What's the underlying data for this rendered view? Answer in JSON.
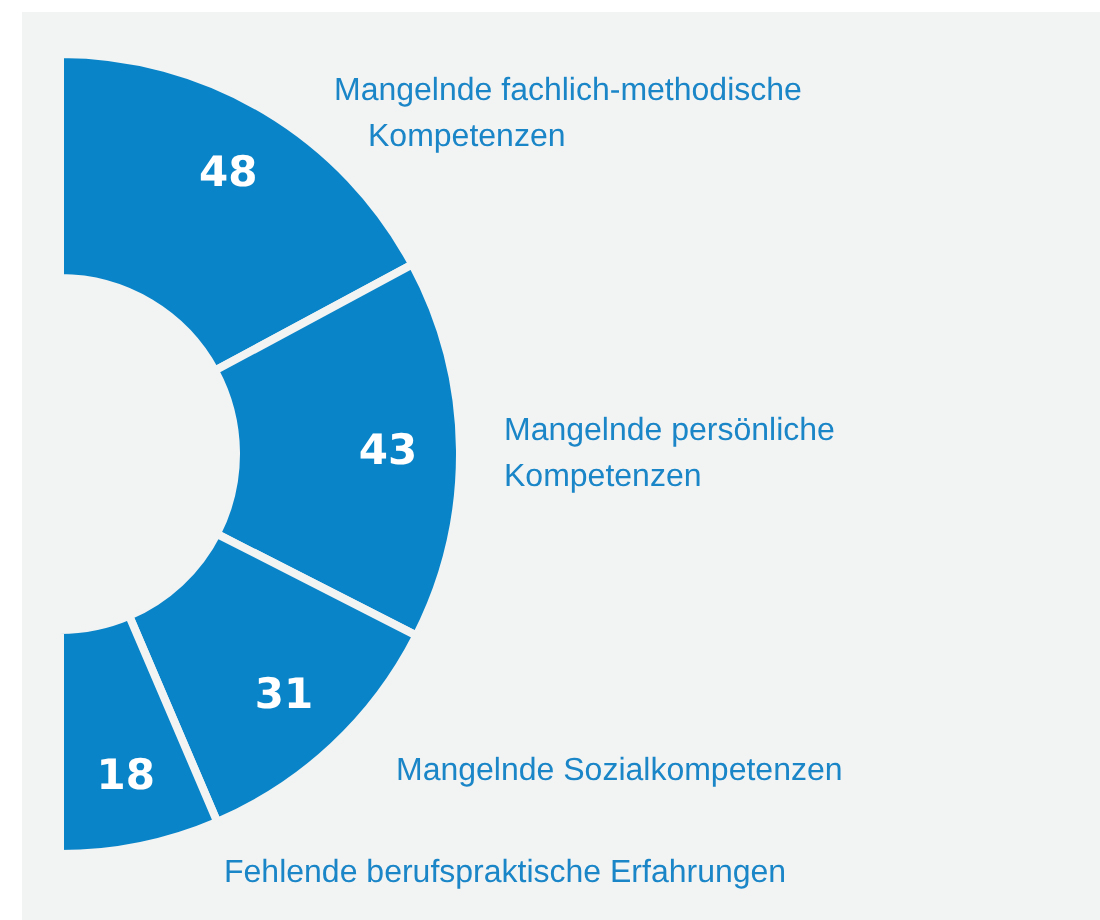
{
  "chart_data": {
    "type": "donut",
    "categories": [
      "Mangelnde fachlich-methodische Kompetenzen",
      "Mangelnde persönliche Kompetenzen",
      "Mangelnde Sozialkompetenzen",
      "Fehlende berufspraktische Erfahrungen"
    ],
    "values": [
      48,
      43,
      31,
      18
    ],
    "colors": [
      "#0a84c8",
      "#0a84c8",
      "#0a84c8",
      "#0a84c8"
    ],
    "data_labels": true
  }
}
